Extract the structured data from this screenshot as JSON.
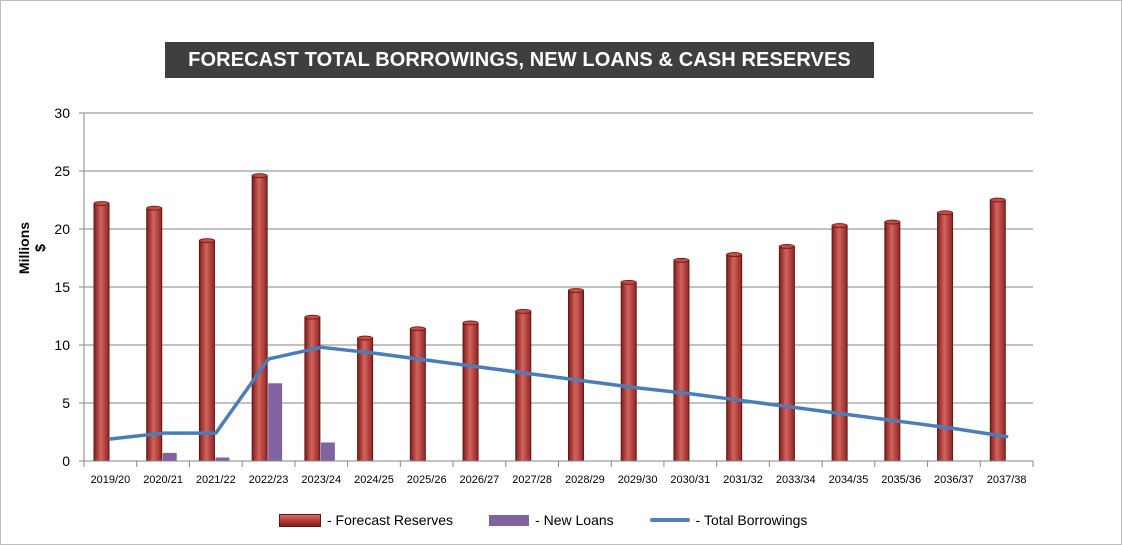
{
  "chart_data": {
    "type": "bar",
    "title": "FORECAST TOTAL BORROWINGS, NEW LOANS & CASH RESERVES",
    "xlabel": "",
    "ylabel": "Millions $",
    "ylim": [
      0,
      30
    ],
    "yticks": [
      "0",
      "5",
      "10",
      "15",
      "20",
      "25",
      "30"
    ],
    "grid": true,
    "legend_position": "bottom",
    "categories": [
      "2019/20",
      "2020/21",
      "2021/22",
      "2022/23",
      "2023/24",
      "2024/25",
      "2025/26",
      "2026/27",
      "2027/28",
      "2028/29",
      "2029/30",
      "2030/31",
      "2031/32",
      "2033/34",
      "2034/35",
      "2035/36",
      "2036/37",
      "2037/38"
    ],
    "series": [
      {
        "name": "- Forecast Reserves",
        "kind": "bar",
        "color": "#b33a36",
        "values": [
          22.2,
          21.8,
          19.0,
          24.6,
          12.4,
          10.6,
          11.4,
          11.9,
          12.9,
          14.7,
          15.4,
          17.3,
          17.8,
          18.5,
          20.3,
          20.6,
          21.4,
          22.5
        ]
      },
      {
        "name": "- New Loans",
        "kind": "bar",
        "color": "#8064a2",
        "values": [
          0,
          0.7,
          0.3,
          6.7,
          1.6,
          0,
          0,
          0,
          0,
          0,
          0,
          0,
          0,
          0,
          0,
          0,
          0,
          0
        ]
      },
      {
        "name": "- Total Borrowings",
        "kind": "line",
        "color": "#4f81bd",
        "values": [
          1.9,
          2.4,
          2.4,
          8.8,
          9.8,
          9.3,
          8.7,
          8.1,
          7.5,
          6.9,
          6.3,
          5.8,
          5.2,
          4.6,
          4.0,
          3.4,
          2.8,
          2.1
        ]
      }
    ]
  }
}
